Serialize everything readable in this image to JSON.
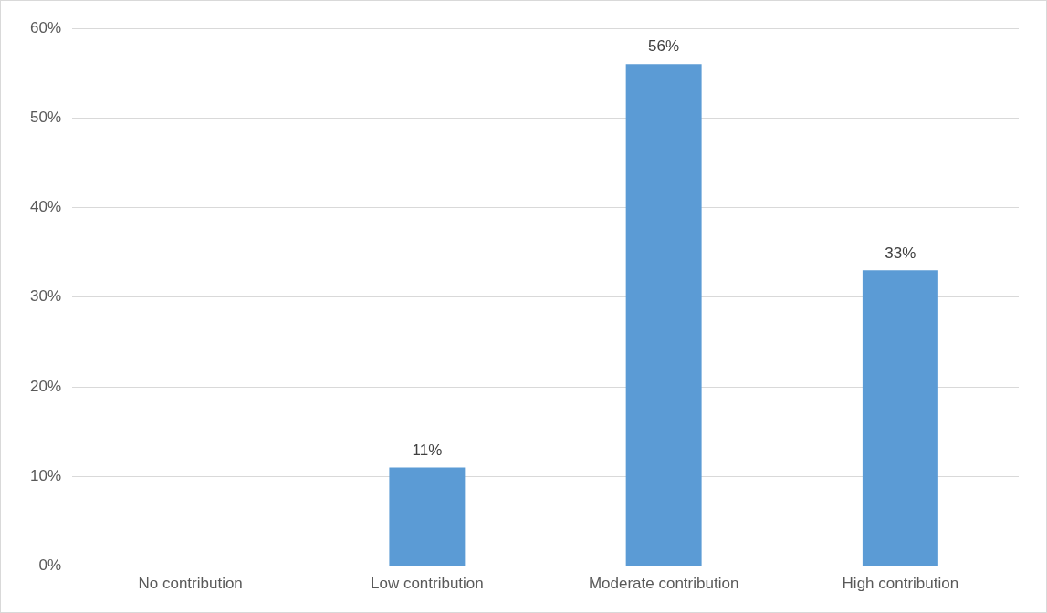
{
  "chart_data": {
    "type": "bar",
    "categories": [
      "No contribution",
      "Low contribution",
      "Moderate contribution",
      "High contribution"
    ],
    "values": [
      0,
      11,
      56,
      33
    ],
    "value_labels": [
      null,
      "11%",
      "56%",
      "33%"
    ],
    "color": "#5b9bd5",
    "ylim": [
      0,
      60
    ],
    "yticks": [
      {
        "value": 0,
        "label": "0%"
      },
      {
        "value": 10,
        "label": "10%"
      },
      {
        "value": 20,
        "label": "20%"
      },
      {
        "value": 30,
        "label": "30%"
      },
      {
        "value": 40,
        "label": "40%"
      },
      {
        "value": 50,
        "label": "50%"
      },
      {
        "value": 60,
        "label": "60%"
      }
    ],
    "grid": "y"
  }
}
